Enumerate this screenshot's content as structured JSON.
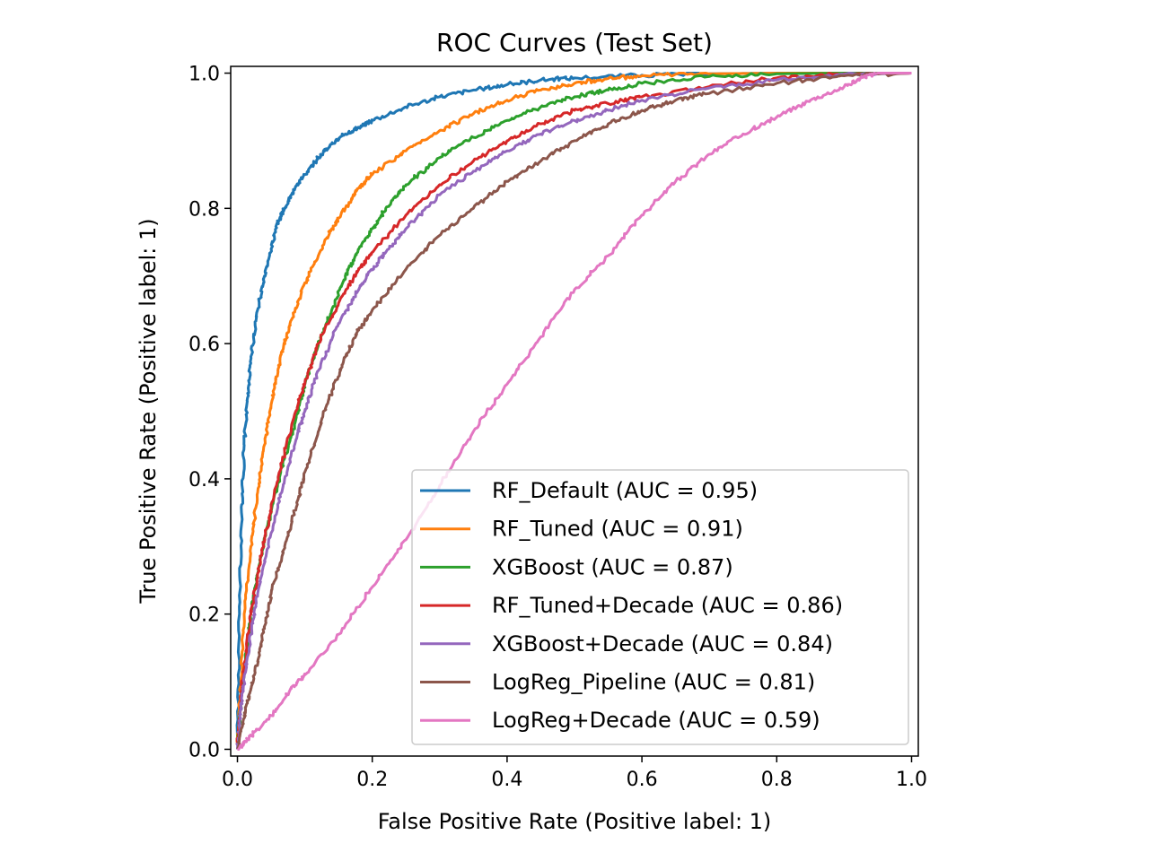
{
  "chart_data": {
    "type": "line",
    "title": "ROC Curves (Test Set)",
    "xlabel": "False Positive Rate (Positive label: 1)",
    "ylabel": "True Positive Rate (Positive label: 1)",
    "xlim": [
      -0.01,
      1.01
    ],
    "ylim": [
      -0.01,
      1.01
    ],
    "xticks": [
      "0.0",
      "0.2",
      "0.4",
      "0.6",
      "0.8",
      "1.0"
    ],
    "yticks": [
      "0.0",
      "0.2",
      "0.4",
      "0.6",
      "0.8",
      "1.0"
    ],
    "grid": false,
    "legend_position": "lower-right",
    "series": [
      {
        "name": "RF_Default (AUC = 0.95)",
        "color": "#1f77b4",
        "points": [
          [
            0,
            0
          ],
          [
            0.003,
            0.2
          ],
          [
            0.006,
            0.35
          ],
          [
            0.01,
            0.45
          ],
          [
            0.015,
            0.52
          ],
          [
            0.02,
            0.58
          ],
          [
            0.03,
            0.65
          ],
          [
            0.04,
            0.7
          ],
          [
            0.05,
            0.74
          ],
          [
            0.06,
            0.78
          ],
          [
            0.07,
            0.8
          ],
          [
            0.08,
            0.82
          ],
          [
            0.1,
            0.85
          ],
          [
            0.12,
            0.875
          ],
          [
            0.14,
            0.895
          ],
          [
            0.16,
            0.91
          ],
          [
            0.18,
            0.92
          ],
          [
            0.2,
            0.93
          ],
          [
            0.25,
            0.95
          ],
          [
            0.3,
            0.965
          ],
          [
            0.35,
            0.975
          ],
          [
            0.4,
            0.983
          ],
          [
            0.45,
            0.99
          ],
          [
            0.5,
            0.993
          ],
          [
            0.6,
            0.997
          ],
          [
            0.7,
            0.999
          ],
          [
            0.8,
            1.0
          ],
          [
            1.0,
            1.0
          ]
        ]
      },
      {
        "name": "RF_Tuned (AUC = 0.91)",
        "color": "#ff7f0e",
        "points": [
          [
            0,
            0
          ],
          [
            0.005,
            0.1
          ],
          [
            0.01,
            0.2
          ],
          [
            0.02,
            0.3
          ],
          [
            0.03,
            0.38
          ],
          [
            0.04,
            0.45
          ],
          [
            0.05,
            0.51
          ],
          [
            0.06,
            0.56
          ],
          [
            0.07,
            0.6
          ],
          [
            0.08,
            0.635
          ],
          [
            0.1,
            0.69
          ],
          [
            0.12,
            0.73
          ],
          [
            0.14,
            0.77
          ],
          [
            0.16,
            0.8
          ],
          [
            0.18,
            0.83
          ],
          [
            0.2,
            0.85
          ],
          [
            0.25,
            0.885
          ],
          [
            0.3,
            0.915
          ],
          [
            0.35,
            0.94
          ],
          [
            0.4,
            0.96
          ],
          [
            0.45,
            0.975
          ],
          [
            0.5,
            0.985
          ],
          [
            0.55,
            0.992
          ],
          [
            0.6,
            0.996
          ],
          [
            0.7,
            0.999
          ],
          [
            0.8,
            1.0
          ],
          [
            1.0,
            1.0
          ]
        ]
      },
      {
        "name": "XGBoost (AUC = 0.87)",
        "color": "#2ca02c",
        "points": [
          [
            0,
            0
          ],
          [
            0.01,
            0.12
          ],
          [
            0.02,
            0.2
          ],
          [
            0.03,
            0.26
          ],
          [
            0.05,
            0.35
          ],
          [
            0.07,
            0.43
          ],
          [
            0.09,
            0.5
          ],
          [
            0.1,
            0.54
          ],
          [
            0.12,
            0.6
          ],
          [
            0.14,
            0.65
          ],
          [
            0.16,
            0.7
          ],
          [
            0.18,
            0.74
          ],
          [
            0.2,
            0.77
          ],
          [
            0.22,
            0.8
          ],
          [
            0.25,
            0.835
          ],
          [
            0.3,
            0.875
          ],
          [
            0.35,
            0.905
          ],
          [
            0.4,
            0.93
          ],
          [
            0.45,
            0.95
          ],
          [
            0.5,
            0.965
          ],
          [
            0.55,
            0.975
          ],
          [
            0.6,
            0.985
          ],
          [
            0.7,
            0.995
          ],
          [
            0.8,
            0.999
          ],
          [
            0.9,
            1.0
          ],
          [
            1.0,
            1.0
          ]
        ]
      },
      {
        "name": "RF_Tuned+Decade (AUC = 0.86)",
        "color": "#d62728",
        "points": [
          [
            0,
            0
          ],
          [
            0.005,
            0.08
          ],
          [
            0.01,
            0.12
          ],
          [
            0.02,
            0.2
          ],
          [
            0.03,
            0.26
          ],
          [
            0.04,
            0.31
          ],
          [
            0.05,
            0.355
          ],
          [
            0.07,
            0.44
          ],
          [
            0.09,
            0.51
          ],
          [
            0.1,
            0.54
          ],
          [
            0.12,
            0.6
          ],
          [
            0.15,
            0.66
          ],
          [
            0.18,
            0.71
          ],
          [
            0.2,
            0.735
          ],
          [
            0.25,
            0.79
          ],
          [
            0.3,
            0.835
          ],
          [
            0.35,
            0.87
          ],
          [
            0.4,
            0.9
          ],
          [
            0.45,
            0.925
          ],
          [
            0.5,
            0.945
          ],
          [
            0.55,
            0.955
          ],
          [
            0.6,
            0.965
          ],
          [
            0.7,
            0.98
          ],
          [
            0.8,
            0.993
          ],
          [
            0.9,
            0.999
          ],
          [
            1.0,
            1.0
          ]
        ]
      },
      {
        "name": "XGBoost+Decade (AUC = 0.84)",
        "color": "#9467bd",
        "points": [
          [
            0,
            0
          ],
          [
            0.005,
            0.06
          ],
          [
            0.01,
            0.1
          ],
          [
            0.02,
            0.17
          ],
          [
            0.03,
            0.23
          ],
          [
            0.05,
            0.32
          ],
          [
            0.07,
            0.4
          ],
          [
            0.09,
            0.47
          ],
          [
            0.1,
            0.5
          ],
          [
            0.12,
            0.56
          ],
          [
            0.15,
            0.63
          ],
          [
            0.18,
            0.68
          ],
          [
            0.2,
            0.71
          ],
          [
            0.22,
            0.735
          ],
          [
            0.25,
            0.77
          ],
          [
            0.3,
            0.82
          ],
          [
            0.35,
            0.855
          ],
          [
            0.4,
            0.885
          ],
          [
            0.45,
            0.91
          ],
          [
            0.5,
            0.93
          ],
          [
            0.55,
            0.945
          ],
          [
            0.6,
            0.96
          ],
          [
            0.7,
            0.978
          ],
          [
            0.8,
            0.99
          ],
          [
            0.9,
            0.998
          ],
          [
            1.0,
            1.0
          ]
        ]
      },
      {
        "name": "LogReg_Pipeline (AUC = 0.81)",
        "color": "#8c564b",
        "points": [
          [
            0,
            0
          ],
          [
            0.01,
            0.05
          ],
          [
            0.02,
            0.09
          ],
          [
            0.03,
            0.13
          ],
          [
            0.04,
            0.18
          ],
          [
            0.05,
            0.23
          ],
          [
            0.07,
            0.3
          ],
          [
            0.09,
            0.37
          ],
          [
            0.1,
            0.41
          ],
          [
            0.12,
            0.47
          ],
          [
            0.14,
            0.53
          ],
          [
            0.16,
            0.58
          ],
          [
            0.18,
            0.62
          ],
          [
            0.2,
            0.65
          ],
          [
            0.25,
            0.71
          ],
          [
            0.3,
            0.76
          ],
          [
            0.35,
            0.8
          ],
          [
            0.4,
            0.84
          ],
          [
            0.45,
            0.87
          ],
          [
            0.5,
            0.9
          ],
          [
            0.55,
            0.925
          ],
          [
            0.6,
            0.945
          ],
          [
            0.65,
            0.96
          ],
          [
            0.7,
            0.97
          ],
          [
            0.8,
            0.985
          ],
          [
            0.9,
            0.996
          ],
          [
            1.0,
            1.0
          ]
        ]
      },
      {
        "name": "LogReg+Decade (AUC = 0.59)",
        "color": "#e377c2",
        "points": [
          [
            0,
            0
          ],
          [
            0.02,
            0.02
          ],
          [
            0.05,
            0.05
          ],
          [
            0.08,
            0.09
          ],
          [
            0.1,
            0.11
          ],
          [
            0.15,
            0.17
          ],
          [
            0.2,
            0.24
          ],
          [
            0.25,
            0.31
          ],
          [
            0.3,
            0.39
          ],
          [
            0.35,
            0.47
          ],
          [
            0.4,
            0.54
          ],
          [
            0.45,
            0.61
          ],
          [
            0.5,
            0.68
          ],
          [
            0.55,
            0.73
          ],
          [
            0.6,
            0.79
          ],
          [
            0.65,
            0.84
          ],
          [
            0.7,
            0.88
          ],
          [
            0.75,
            0.91
          ],
          [
            0.8,
            0.935
          ],
          [
            0.85,
            0.96
          ],
          [
            0.9,
            0.98
          ],
          [
            0.93,
            0.995
          ],
          [
            0.95,
            1.0
          ],
          [
            1.0,
            1.0
          ]
        ]
      }
    ]
  }
}
